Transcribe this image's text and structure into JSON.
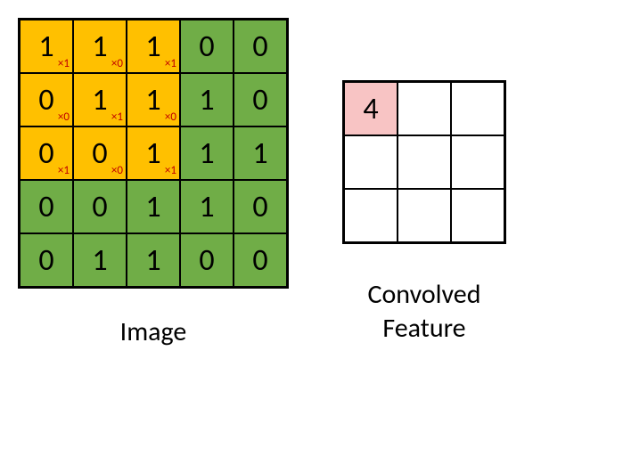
{
  "image": {
    "label": "Image",
    "grid_size": 5,
    "cell_size": 60,
    "colors": {
      "green": "#70ad47",
      "yellow": "#ffc000",
      "border": "#000000",
      "text": "#000000",
      "kernel_text": "#c00000"
    },
    "font_size_value": 34,
    "font_size_kernel": 13,
    "cells": [
      [
        {
          "v": "1",
          "k": "×1",
          "bg": "yellow"
        },
        {
          "v": "1",
          "k": "×0",
          "bg": "yellow"
        },
        {
          "v": "1",
          "k": "×1",
          "bg": "yellow"
        },
        {
          "v": "0",
          "bg": "green"
        },
        {
          "v": "0",
          "bg": "green"
        }
      ],
      [
        {
          "v": "0",
          "k": "×0",
          "bg": "yellow"
        },
        {
          "v": "1",
          "k": "×1",
          "bg": "yellow"
        },
        {
          "v": "1",
          "k": "×0",
          "bg": "yellow"
        },
        {
          "v": "1",
          "bg": "green"
        },
        {
          "v": "0",
          "bg": "green"
        }
      ],
      [
        {
          "v": "0",
          "k": "×1",
          "bg": "yellow"
        },
        {
          "v": "0",
          "k": "×0",
          "bg": "yellow"
        },
        {
          "v": "1",
          "k": "×1",
          "bg": "yellow"
        },
        {
          "v": "1",
          "bg": "green"
        },
        {
          "v": "1",
          "bg": "green"
        }
      ],
      [
        {
          "v": "0",
          "bg": "green"
        },
        {
          "v": "0",
          "bg": "green"
        },
        {
          "v": "1",
          "bg": "green"
        },
        {
          "v": "1",
          "bg": "green"
        },
        {
          "v": "0",
          "bg": "green"
        }
      ],
      [
        {
          "v": "0",
          "bg": "green"
        },
        {
          "v": "1",
          "bg": "green"
        },
        {
          "v": "1",
          "bg": "green"
        },
        {
          "v": "0",
          "bg": "green"
        },
        {
          "v": "0",
          "bg": "green"
        }
      ]
    ]
  },
  "output": {
    "label": "Convolved\nFeature",
    "grid_size": 3,
    "cell_size": 60,
    "colors": {
      "pink": "#f8c4c4",
      "white": "#ffffff",
      "border": "#000000",
      "text": "#000000"
    },
    "font_size_value": 34,
    "cells": [
      [
        {
          "v": "4",
          "bg": "pink"
        },
        {
          "v": "",
          "bg": "white"
        },
        {
          "v": "",
          "bg": "white"
        }
      ],
      [
        {
          "v": "",
          "bg": "white"
        },
        {
          "v": "",
          "bg": "white"
        },
        {
          "v": "",
          "bg": "white"
        }
      ],
      [
        {
          "v": "",
          "bg": "white"
        },
        {
          "v": "",
          "bg": "white"
        },
        {
          "v": "",
          "bg": "white"
        }
      ]
    ]
  },
  "label_font_size": 30
}
